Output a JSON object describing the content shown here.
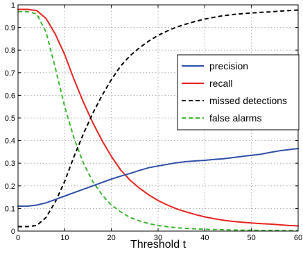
{
  "chart_data": {
    "type": "line",
    "xlabel": "Threshold t",
    "ylabel": "",
    "title": "",
    "xlim": [
      0,
      60
    ],
    "ylim": [
      0,
      1
    ],
    "xticks": [
      0,
      10,
      20,
      30,
      40,
      50,
      60
    ],
    "yticks": [
      0,
      0.1,
      0.2,
      0.3,
      0.4,
      0.5,
      0.6,
      0.7,
      0.8,
      0.9,
      1
    ],
    "grid": true,
    "legend_position": "right",
    "x": [
      0,
      2,
      4,
      6,
      8,
      10,
      12,
      14,
      16,
      18,
      20,
      22,
      24,
      26,
      28,
      30,
      32,
      34,
      36,
      38,
      40,
      42,
      44,
      46,
      48,
      50,
      52,
      54,
      56,
      58,
      60
    ],
    "series": [
      {
        "name": "precision",
        "color": "#2f4fa8",
        "dash": "solid",
        "values": [
          0.11,
          0.11,
          0.115,
          0.125,
          0.14,
          0.155,
          0.17,
          0.185,
          0.2,
          0.215,
          0.23,
          0.243,
          0.255,
          0.268,
          0.28,
          0.288,
          0.295,
          0.302,
          0.307,
          0.31,
          0.313,
          0.317,
          0.32,
          0.325,
          0.33,
          0.335,
          0.34,
          0.348,
          0.355,
          0.36,
          0.365
        ]
      },
      {
        "name": "recall",
        "color": "#e8231f",
        "dash": "solid",
        "values": [
          0.98,
          0.98,
          0.975,
          0.94,
          0.87,
          0.78,
          0.67,
          0.57,
          0.48,
          0.4,
          0.33,
          0.27,
          0.225,
          0.19,
          0.16,
          0.135,
          0.115,
          0.098,
          0.085,
          0.073,
          0.063,
          0.055,
          0.048,
          0.043,
          0.039,
          0.036,
          0.033,
          0.031,
          0.028,
          0.025,
          0.023
        ]
      },
      {
        "name": "missed detections",
        "color": "#000000",
        "dash": "dashed",
        "values": [
          0.02,
          0.02,
          0.025,
          0.06,
          0.13,
          0.22,
          0.33,
          0.43,
          0.52,
          0.6,
          0.67,
          0.73,
          0.775,
          0.81,
          0.84,
          0.865,
          0.885,
          0.902,
          0.915,
          0.927,
          0.937,
          0.945,
          0.952,
          0.957,
          0.961,
          0.964,
          0.967,
          0.969,
          0.972,
          0.975,
          0.977
        ]
      },
      {
        "name": "false alarms",
        "color": "#39b82e",
        "dash": "dashed",
        "values": [
          0.97,
          0.97,
          0.96,
          0.88,
          0.72,
          0.55,
          0.41,
          0.3,
          0.22,
          0.16,
          0.115,
          0.085,
          0.06,
          0.045,
          0.033,
          0.025,
          0.019,
          0.015,
          0.012,
          0.01,
          0.008,
          0.007,
          0.006,
          0.005,
          0.004,
          0.004,
          0.003,
          0.003,
          0.003,
          0.002,
          0.002
        ]
      }
    ]
  }
}
